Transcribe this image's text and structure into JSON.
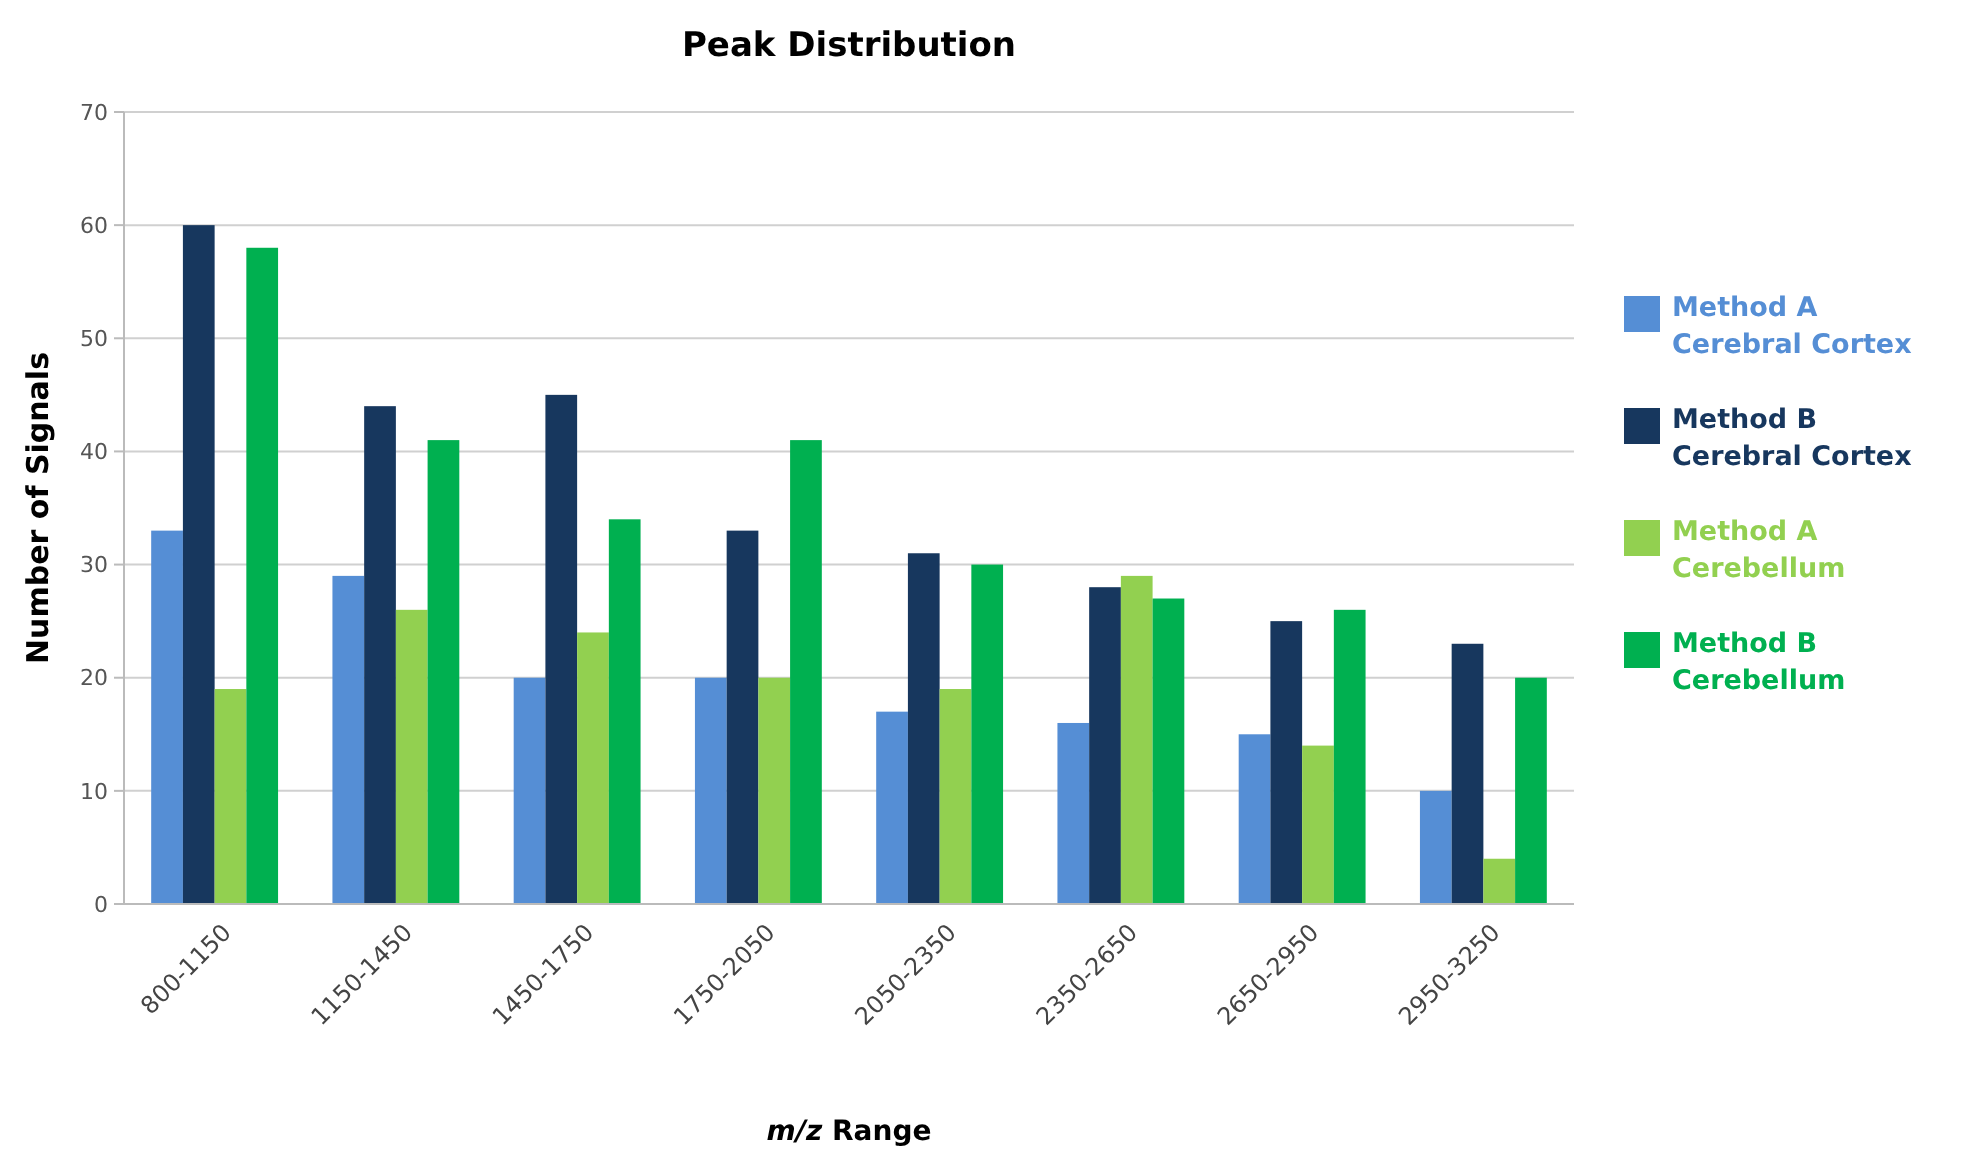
{
  "chart_data": {
    "type": "bar",
    "title": "Peak Distribution",
    "xlabel": "m/z Range",
    "ylabel": "Number of Signals",
    "categories": [
      "800-1150",
      "1150-1450",
      "1450-1750",
      "1750-2050",
      "2050-2350",
      "2350-2650",
      "2650-2950",
      "2950-3250"
    ],
    "series": [
      {
        "name": "Method A Cerebral Cortex",
        "color": "#558ed5",
        "values": [
          33,
          29,
          20,
          20,
          17,
          16,
          15,
          10
        ]
      },
      {
        "name": "Method B Cerebral Cortex",
        "color": "#17375e",
        "values": [
          60,
          44,
          45,
          33,
          31,
          28,
          25,
          23
        ]
      },
      {
        "name": "Method A Cerebellum",
        "color": "#92d050",
        "values": [
          19,
          26,
          24,
          20,
          19,
          29,
          14,
          4
        ]
      },
      {
        "name": "Method B Cerebellum",
        "color": "#00b050",
        "values": [
          58,
          41,
          34,
          41,
          30,
          27,
          26,
          20
        ]
      }
    ],
    "ylim": [
      0,
      70
    ],
    "yticks": [
      0,
      10,
      20,
      30,
      40,
      50,
      60,
      70
    ],
    "grid": "y",
    "legend": "right"
  }
}
